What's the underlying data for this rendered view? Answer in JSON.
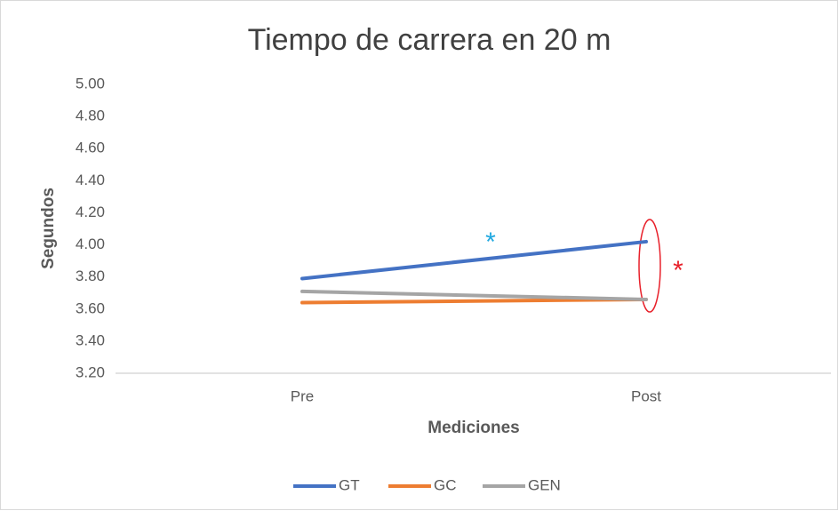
{
  "chart_data": {
    "type": "line",
    "title": "Tiempo de carrera en 20 m",
    "xlabel": "Mediciones",
    "ylabel": "Segundos",
    "categories": [
      "Pre",
      "Post"
    ],
    "series": [
      {
        "name": "GT",
        "color": "#4472c4",
        "values": [
          3.79,
          4.02
        ]
      },
      {
        "name": "GC",
        "color": "#ed7d31",
        "values": [
          3.64,
          3.66
        ]
      },
      {
        "name": "GEN",
        "color": "#a5a5a5",
        "values": [
          3.71,
          3.66
        ]
      }
    ],
    "ylim": [
      3.2,
      5.0
    ],
    "yticks": [
      {
        "value": 3.2,
        "label": "3.20"
      },
      {
        "value": 3.4,
        "label": "3.40"
      },
      {
        "value": 3.6,
        "label": "3.60"
      },
      {
        "value": 3.8,
        "label": "3.80"
      },
      {
        "value": 4.0,
        "label": "4.00"
      },
      {
        "value": 4.2,
        "label": "4.20"
      },
      {
        "value": 4.4,
        "label": "4.40"
      },
      {
        "value": 4.6,
        "label": "4.60"
      },
      {
        "value": 4.8,
        "label": "4.80"
      },
      {
        "value": 5.0,
        "label": "5.00"
      }
    ],
    "legend": "bottom",
    "annotations": [
      {
        "text": "*",
        "color": "#1fa8e0"
      },
      {
        "text": "*",
        "color": "#e8202a"
      }
    ]
  }
}
